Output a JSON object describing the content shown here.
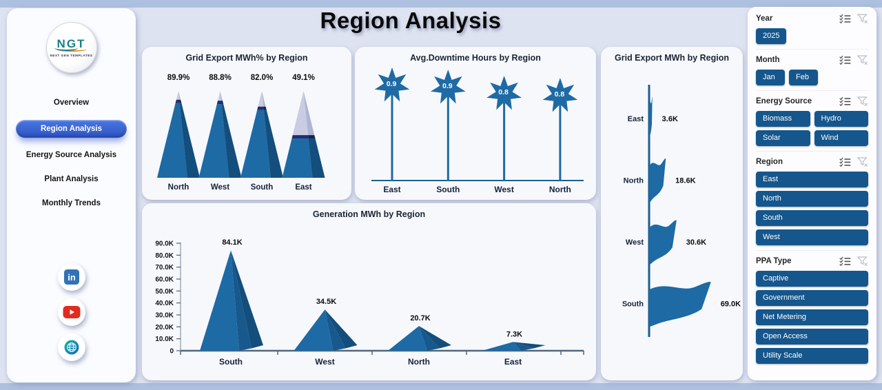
{
  "page": {
    "title": "Region Analysis"
  },
  "sidebar": {
    "logo": {
      "text": "NGT",
      "subtext": "NEXT GEN TEMPLATES"
    },
    "items": [
      {
        "label": "Overview",
        "active": false
      },
      {
        "label": "Region Analysis",
        "active": true
      },
      {
        "label": "Energy Source Analysis",
        "active": false
      },
      {
        "label": "Plant Analysis",
        "active": false
      },
      {
        "label": "Monthly Trends",
        "active": false
      }
    ],
    "social": [
      {
        "name": "linkedin"
      },
      {
        "name": "youtube"
      },
      {
        "name": "website"
      }
    ]
  },
  "filters": [
    {
      "label": "Year",
      "layout": "inline",
      "options": [
        "2025"
      ]
    },
    {
      "label": "Month",
      "layout": "inline",
      "options": [
        "Jan",
        "Feb"
      ]
    },
    {
      "label": "Energy Source",
      "layout": "grid",
      "options": [
        "Biomass",
        "Hydro",
        "Solar",
        "Wind"
      ]
    },
    {
      "label": "Region",
      "layout": "stack",
      "options": [
        "East",
        "North",
        "South",
        "West"
      ]
    },
    {
      "label": "PPA Type",
      "layout": "stack",
      "options": [
        "Captive",
        "Government",
        "Net Metering",
        "Open Access",
        "Utility Scale"
      ]
    }
  ],
  "chart_data": [
    {
      "type": "pyramid-fill",
      "title": "Grid Export MWh% by Region",
      "categories": [
        "North",
        "West",
        "South",
        "East"
      ],
      "values": [
        89.9,
        88.8,
        82.0,
        49.1
      ],
      "labels": [
        "89.9%",
        "88.8%",
        "82.0%",
        "49.1%"
      ],
      "max": 100
    },
    {
      "type": "star-lollipop",
      "title": "Avg.Downtime Hours by Region",
      "categories": [
        "East",
        "South",
        "West",
        "North"
      ],
      "values": [
        0.92,
        0.9,
        0.84,
        0.82
      ],
      "labels": [
        "0.9",
        "0.9",
        "0.8",
        "0.8"
      ]
    },
    {
      "type": "flag-bar",
      "title": "Grid Export MWh by Region",
      "categories": [
        "East",
        "North",
        "West",
        "South"
      ],
      "values": [
        3.6,
        18.6,
        30.6,
        69.0
      ],
      "labels": [
        "3.6K",
        "18.6K",
        "30.6K",
        "69.0K"
      ]
    },
    {
      "type": "pyramid-bar",
      "title": "Generation MWh by Region",
      "categories": [
        "South",
        "West",
        "North",
        "East"
      ],
      "values": [
        84.1,
        34.5,
        20.7,
        7.3
      ],
      "labels": [
        "84.1K",
        "34.5K",
        "20.7K",
        "7.3K"
      ],
      "ymax": 90,
      "ytick_labels": [
        "0",
        "10.0K",
        "20.0K",
        "30.0K",
        "40.0K",
        "50.0K",
        "60.0K",
        "70.0K",
        "80.0K",
        "90.0K"
      ]
    }
  ],
  "colors": {
    "chart_blue": "#1E6AA4",
    "chart_blue_mid": "#17598C",
    "chart_blue_dark": "#134E7C",
    "lavender": "#C9CCE3",
    "lavender_dark": "#AFB4D2",
    "navy_band": "#202F72",
    "navy_band_dark": "#182457",
    "axis": "#1B5E8F",
    "axis_dark": "#51677E",
    "text_dark": "#0B0B0B",
    "slicer_blue": "#15568C",
    "nav_pill_blue": "#3562D0",
    "background": "#DEE3F1",
    "strip": "#AEC0E0"
  }
}
